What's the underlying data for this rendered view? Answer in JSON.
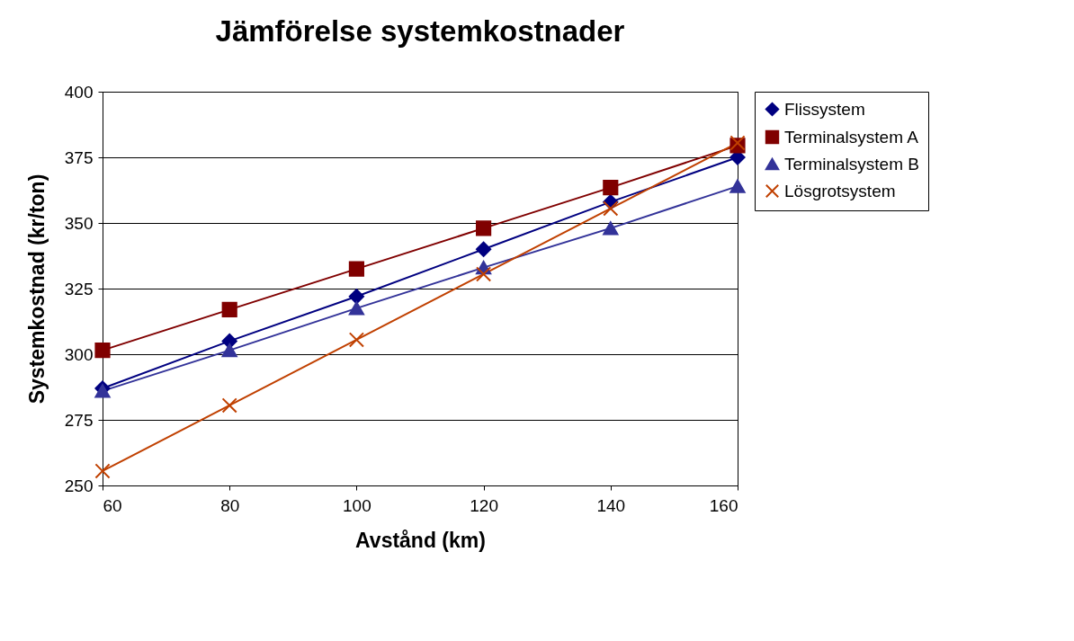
{
  "chart_data": {
    "type": "line",
    "title": "Jämförelse systemkostnader",
    "xlabel": "Avstånd (km)",
    "ylabel": "Systemkostnad (kr/ton)",
    "x": [
      60,
      80,
      100,
      120,
      140,
      160
    ],
    "series": [
      {
        "name": "Flissystem",
        "color": "#000080",
        "marker": "diamond",
        "values": [
          287,
          305,
          322,
          340,
          358,
          375
        ]
      },
      {
        "name": "Terminalsystem A",
        "color": "#800000",
        "marker": "square",
        "values": [
          301.5,
          317,
          332.5,
          348,
          363.5,
          379.5
        ]
      },
      {
        "name": "Terminalsystem B",
        "color": "#333399",
        "marker": "triangle",
        "values": [
          286,
          301.5,
          317.5,
          333,
          348,
          364
        ]
      },
      {
        "name": "Lösgrotsystem",
        "color": "#c04000",
        "marker": "cross",
        "values": [
          255.5,
          280.5,
          305.5,
          330.5,
          355.5,
          380.5
        ]
      }
    ],
    "xlim": [
      60,
      160
    ],
    "xticks": [
      60,
      80,
      100,
      120,
      140,
      160
    ],
    "ylim": [
      250,
      400
    ],
    "yticks": [
      250,
      275,
      300,
      325,
      350,
      375,
      400
    ],
    "grid": "y",
    "legend": "right"
  }
}
